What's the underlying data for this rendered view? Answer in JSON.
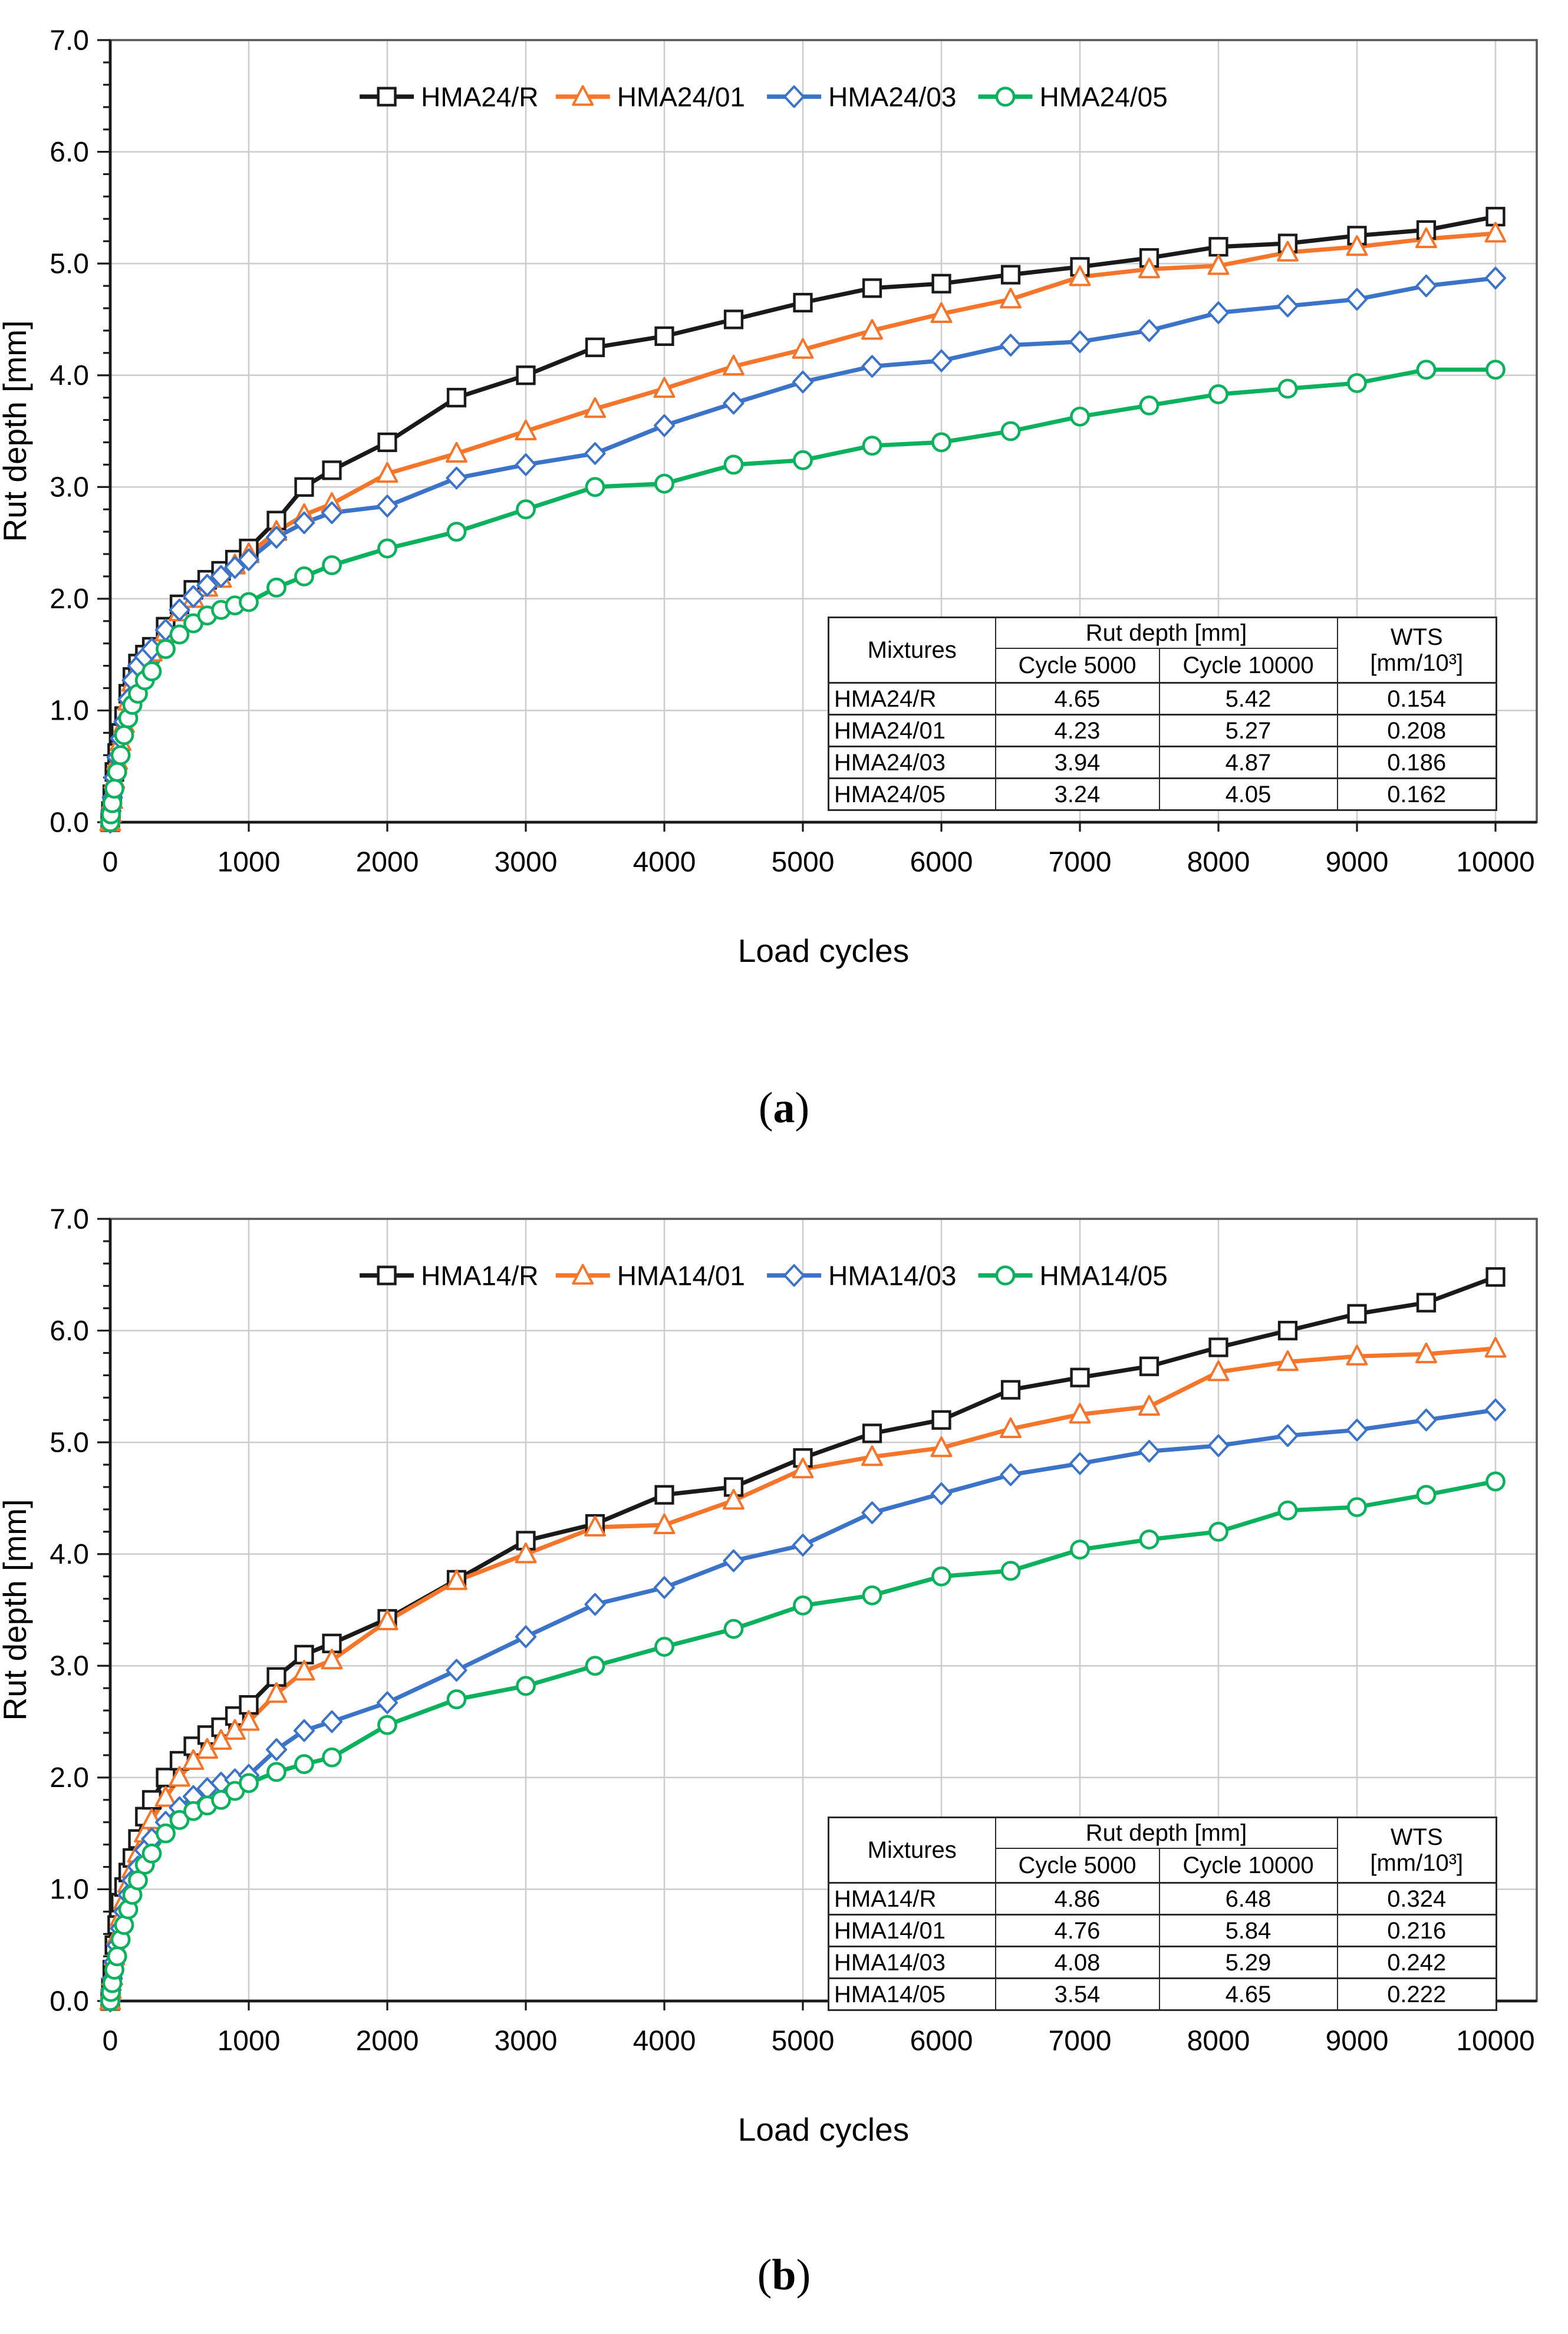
{
  "captions": {
    "a": {
      "open": "(",
      "letter": "a",
      "close": ")"
    },
    "b": {
      "open": "(",
      "letter": "b",
      "close": ")"
    }
  },
  "table_header": {
    "mixtures": "Mixtures",
    "rut_depth": "Rut depth [mm]",
    "cycle5000": "Cycle 5000",
    "cycle10000": "Cycle 10000",
    "wts": "WTS",
    "wts_unit": "[mm/10³]"
  },
  "colors": {
    "black": "#1a1a1a",
    "orange": "#f5752b",
    "blue": "#3a73c8",
    "green": "#0cb15e",
    "grid": "#cdcdcd",
    "frame": "#595959",
    "text": "#000000"
  },
  "chart_data": [
    {
      "id": "a",
      "type": "line",
      "title": "",
      "xlabel": "Load cycles",
      "ylabel": "Rut depth [mm]",
      "xlim": [
        0,
        10000
      ],
      "ylim": [
        0,
        7
      ],
      "grid": true,
      "legend_position": "top-center-inside",
      "x_ticks": [
        0,
        1000,
        2000,
        3000,
        4000,
        5000,
        6000,
        7000,
        8000,
        9000,
        10000
      ],
      "x_tick_labels": [
        "0",
        "1000",
        "2000",
        "3000",
        "4000",
        "5000",
        "6000",
        "7000",
        "8000",
        "9000",
        "10000"
      ],
      "y_ticks": [
        0,
        1,
        2,
        3,
        4,
        5,
        6,
        7
      ],
      "y_tick_labels": [
        "0.0",
        "1.0",
        "2.0",
        "3.0",
        "4.0",
        "5.0",
        "6.0",
        "7.0"
      ],
      "y_minor_step": 0.2,
      "x": [
        0,
        5,
        15,
        30,
        50,
        75,
        100,
        130,
        160,
        200,
        250,
        300,
        400,
        500,
        600,
        700,
        800,
        900,
        1000,
        1200,
        1400,
        1600,
        2000,
        2500,
        3000,
        3500,
        4000,
        4500,
        5000,
        5500,
        6000,
        6500,
        7000,
        7500,
        8000,
        8500,
        9000,
        9500,
        10000
      ],
      "series": [
        {
          "name": "HMA24/R",
          "color_key": "black",
          "marker": "square",
          "y": [
            0,
            0.1,
            0.25,
            0.45,
            0.62,
            0.8,
            0.95,
            1.15,
            1.3,
            1.42,
            1.5,
            1.57,
            1.75,
            1.95,
            2.08,
            2.17,
            2.25,
            2.35,
            2.45,
            2.7,
            3.0,
            3.15,
            3.4,
            3.8,
            4.0,
            4.25,
            4.35,
            4.5,
            4.65,
            4.78,
            4.82,
            4.9,
            4.97,
            5.05,
            5.15,
            5.18,
            5.25,
            5.3,
            5.42
          ]
        },
        {
          "name": "HMA24/01",
          "color_key": "orange",
          "marker": "triangle",
          "y": [
            0,
            0.08,
            0.2,
            0.38,
            0.55,
            0.72,
            0.88,
            1.08,
            1.25,
            1.38,
            1.45,
            1.52,
            1.7,
            1.88,
            2.0,
            2.1,
            2.18,
            2.3,
            2.4,
            2.6,
            2.75,
            2.85,
            3.12,
            3.3,
            3.5,
            3.7,
            3.88,
            4.08,
            4.23,
            4.4,
            4.55,
            4.68,
            4.88,
            4.95,
            4.98,
            5.1,
            5.15,
            5.22,
            5.27
          ]
        },
        {
          "name": "HMA24/03",
          "color_key": "blue",
          "marker": "diamond",
          "y": [
            0,
            0.1,
            0.22,
            0.4,
            0.58,
            0.75,
            0.9,
            1.1,
            1.27,
            1.4,
            1.48,
            1.55,
            1.72,
            1.9,
            2.02,
            2.12,
            2.2,
            2.28,
            2.35,
            2.55,
            2.68,
            2.77,
            2.83,
            3.08,
            3.2,
            3.3,
            3.55,
            3.75,
            3.94,
            4.08,
            4.13,
            4.27,
            4.3,
            4.4,
            4.56,
            4.62,
            4.68,
            4.8,
            4.87
          ]
        },
        {
          "name": "HMA24/05",
          "color_key": "green",
          "marker": "circle",
          "y": [
            0,
            0.07,
            0.17,
            0.3,
            0.45,
            0.6,
            0.78,
            0.93,
            1.05,
            1.15,
            1.27,
            1.35,
            1.55,
            1.68,
            1.78,
            1.85,
            1.9,
            1.94,
            1.97,
            2.1,
            2.2,
            2.3,
            2.45,
            2.6,
            2.8,
            3.0,
            3.03,
            3.2,
            3.24,
            3.37,
            3.4,
            3.5,
            3.63,
            3.73,
            3.83,
            3.88,
            3.93,
            4.05,
            4.05
          ]
        }
      ],
      "table": {
        "rows": [
          [
            "HMA24/R",
            "4.65",
            "5.42",
            "0.154"
          ],
          [
            "HMA24/01",
            "4.23",
            "5.27",
            "0.208"
          ],
          [
            "HMA24/03",
            "3.94",
            "4.87",
            "0.186"
          ],
          [
            "HMA24/05",
            "3.24",
            "4.05",
            "0.162"
          ]
        ]
      }
    },
    {
      "id": "b",
      "type": "line",
      "title": "",
      "xlabel": "Load cycles",
      "ylabel": "Rut depth [mm]",
      "xlim": [
        0,
        10000
      ],
      "ylim": [
        0,
        7
      ],
      "grid": true,
      "legend_position": "top-center-inside",
      "x_ticks": [
        0,
        1000,
        2000,
        3000,
        4000,
        5000,
        6000,
        7000,
        8000,
        9000,
        10000
      ],
      "x_tick_labels": [
        "0",
        "1000",
        "2000",
        "3000",
        "4000",
        "5000",
        "6000",
        "7000",
        "8000",
        "9000",
        "10000"
      ],
      "y_ticks": [
        0,
        1,
        2,
        3,
        4,
        5,
        6,
        7
      ],
      "y_tick_labels": [
        "0.0",
        "1.0",
        "2.0",
        "3.0",
        "4.0",
        "5.0",
        "6.0",
        "7.0"
      ],
      "y_minor_step": 0.2,
      "x": [
        0,
        5,
        15,
        30,
        50,
        75,
        100,
        130,
        160,
        200,
        250,
        300,
        400,
        500,
        600,
        700,
        800,
        900,
        1000,
        1200,
        1400,
        1600,
        2000,
        2500,
        3000,
        3500,
        4000,
        4500,
        5000,
        5500,
        6000,
        6500,
        7000,
        7500,
        8000,
        8500,
        9000,
        9500,
        10000
      ],
      "series": [
        {
          "name": "HMA14/R",
          "color_key": "black",
          "marker": "square",
          "y": [
            0,
            0.12,
            0.28,
            0.5,
            0.68,
            0.88,
            1.02,
            1.15,
            1.28,
            1.45,
            1.65,
            1.8,
            2.0,
            2.15,
            2.28,
            2.38,
            2.45,
            2.55,
            2.65,
            2.9,
            3.1,
            3.2,
            3.42,
            3.77,
            4.12,
            4.27,
            4.53,
            4.6,
            4.86,
            5.08,
            5.2,
            5.47,
            5.58,
            5.68,
            5.85,
            6.0,
            6.15,
            6.25,
            6.48
          ]
        },
        {
          "name": "HMA14/01",
          "color_key": "orange",
          "marker": "triangle",
          "y": [
            0,
            0.1,
            0.22,
            0.4,
            0.58,
            0.75,
            0.9,
            1.05,
            1.18,
            1.32,
            1.5,
            1.62,
            1.82,
            2.0,
            2.15,
            2.25,
            2.33,
            2.42,
            2.5,
            2.75,
            2.95,
            3.05,
            3.4,
            3.76,
            4.0,
            4.24,
            4.26,
            4.48,
            4.76,
            4.87,
            4.95,
            5.12,
            5.25,
            5.32,
            5.63,
            5.72,
            5.77,
            5.79,
            5.84
          ]
        },
        {
          "name": "HMA14/03",
          "color_key": "blue",
          "marker": "diamond",
          "y": [
            0,
            0.1,
            0.2,
            0.35,
            0.5,
            0.65,
            0.8,
            0.95,
            1.08,
            1.2,
            1.35,
            1.45,
            1.6,
            1.73,
            1.83,
            1.9,
            1.95,
            1.98,
            2.02,
            2.25,
            2.42,
            2.5,
            2.67,
            2.96,
            3.26,
            3.55,
            3.7,
            3.94,
            4.08,
            4.37,
            4.54,
            4.71,
            4.81,
            4.92,
            4.97,
            5.06,
            5.11,
            5.2,
            5.29
          ]
        },
        {
          "name": "HMA14/05",
          "color_key": "green",
          "marker": "circle",
          "y": [
            0,
            0.08,
            0.16,
            0.28,
            0.4,
            0.55,
            0.68,
            0.82,
            0.95,
            1.08,
            1.22,
            1.32,
            1.5,
            1.62,
            1.7,
            1.75,
            1.8,
            1.88,
            1.95,
            2.05,
            2.12,
            2.18,
            2.47,
            2.7,
            2.82,
            3.0,
            3.17,
            3.33,
            3.54,
            3.63,
            3.8,
            3.85,
            4.04,
            4.13,
            4.2,
            4.39,
            4.42,
            4.53,
            4.65
          ]
        }
      ],
      "table": {
        "rows": [
          [
            "HMA14/R",
            "4.86",
            "6.48",
            "0.324"
          ],
          [
            "HMA14/01",
            "4.76",
            "5.84",
            "0.216"
          ],
          [
            "HMA14/03",
            "4.08",
            "5.29",
            "0.242"
          ],
          [
            "HMA14/05",
            "3.54",
            "4.65",
            "0.222"
          ]
        ]
      }
    }
  ]
}
